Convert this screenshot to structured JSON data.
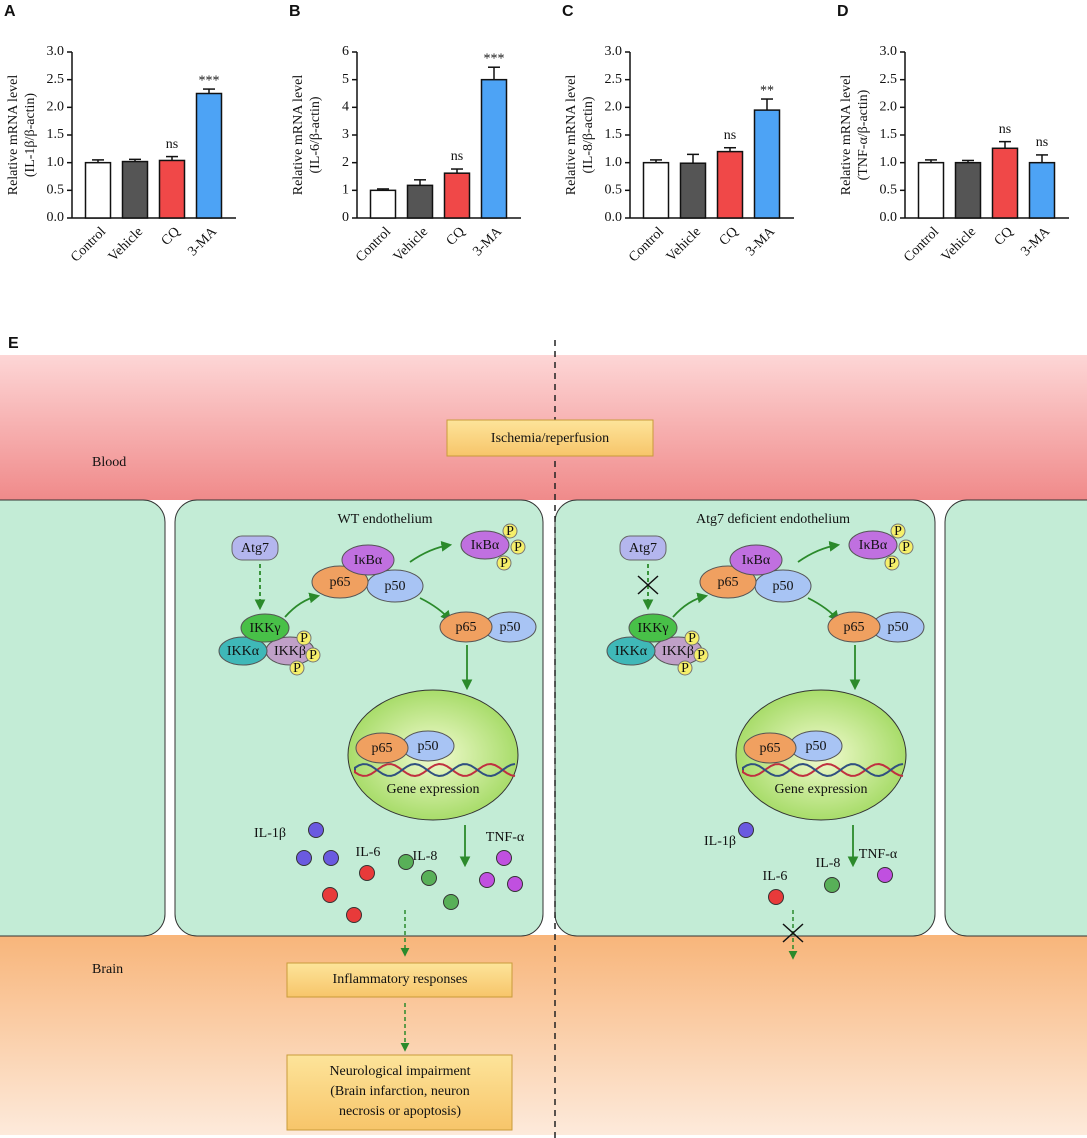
{
  "chart_data": [
    {
      "type": "bar",
      "panel_label": "A",
      "ylabel": [
        "Relative mRNA level",
        "(IL-1β/β-actin)"
      ],
      "categories": [
        "Control",
        "Vehicle",
        "CQ",
        "3-MA"
      ],
      "values": [
        1.0,
        1.02,
        1.04,
        2.25
      ],
      "errors": [
        0.05,
        0.04,
        0.07,
        0.08
      ],
      "annotations": [
        null,
        null,
        "ns",
        "***"
      ],
      "colors": [
        "#ffffff",
        "#555555",
        "#f04848",
        "#4da3f5"
      ],
      "ylim": [
        0,
        3
      ],
      "yticks": [
        {
          "value": 0,
          "label": "0.0"
        },
        {
          "value": 0.5,
          "label": "0.5"
        },
        {
          "value": 1,
          "label": "1.0"
        },
        {
          "value": 1.5,
          "label": "1.5"
        },
        {
          "value": 2,
          "label": "2.0"
        },
        {
          "value": 2.5,
          "label": "2.5"
        },
        {
          "value": 3,
          "label": "3.0"
        }
      ]
    },
    {
      "type": "bar",
      "panel_label": "B",
      "ylabel": [
        "Relative mRNA level",
        "(IL-6/β-actin)"
      ],
      "categories": [
        "Control",
        "Vehicle",
        "CQ",
        "3-MA"
      ],
      "values": [
        1.0,
        1.18,
        1.62,
        5.0
      ],
      "errors": [
        0.05,
        0.2,
        0.15,
        0.45
      ],
      "annotations": [
        null,
        null,
        "ns",
        "***"
      ],
      "colors": [
        "#ffffff",
        "#555555",
        "#f04848",
        "#4da3f5"
      ],
      "ylim": [
        0,
        6
      ],
      "yticks": [
        0,
        1,
        2,
        3,
        4,
        5,
        6
      ]
    },
    {
      "type": "bar",
      "panel_label": "C",
      "ylabel": [
        "Relative mRNA level",
        "(IL-8/β-actin)"
      ],
      "categories": [
        "Control",
        "Vehicle",
        "CQ",
        "3-MA"
      ],
      "values": [
        1.0,
        0.99,
        1.2,
        1.95
      ],
      "errors": [
        0.05,
        0.16,
        0.07,
        0.2
      ],
      "annotations": [
        null,
        null,
        "ns",
        "**"
      ],
      "colors": [
        "#ffffff",
        "#555555",
        "#f04848",
        "#4da3f5"
      ],
      "ylim": [
        0,
        3
      ],
      "yticks": [
        {
          "value": 0,
          "label": "0.0"
        },
        {
          "value": 0.5,
          "label": "0.5"
        },
        {
          "value": 1,
          "label": "1.0"
        },
        {
          "value": 1.5,
          "label": "1.5"
        },
        {
          "value": 2,
          "label": "2.0"
        },
        {
          "value": 2.5,
          "label": "2.5"
        },
        {
          "value": 3,
          "label": "3.0"
        }
      ]
    },
    {
      "type": "bar",
      "panel_label": "D",
      "ylabel": [
        "Relative mRNA level",
        "(TNF-α/β-actin)"
      ],
      "categories": [
        "Control",
        "Vehicle",
        "CQ",
        "3-MA"
      ],
      "values": [
        1.0,
        1.0,
        1.26,
        1.0
      ],
      "errors": [
        0.05,
        0.04,
        0.12,
        0.14
      ],
      "annotations": [
        null,
        null,
        "ns",
        "ns"
      ],
      "colors": [
        "#ffffff",
        "#555555",
        "#f04848",
        "#4da3f5"
      ],
      "ylim": [
        0,
        3
      ],
      "yticks": [
        {
          "value": 0,
          "label": "0.0"
        },
        {
          "value": 0.5,
          "label": "0.5"
        },
        {
          "value": 1,
          "label": "1.0"
        },
        {
          "value": 1.5,
          "label": "1.5"
        },
        {
          "value": 2,
          "label": "2.0"
        },
        {
          "value": 2.5,
          "label": "2.5"
        },
        {
          "value": 3,
          "label": "3.0"
        }
      ]
    }
  ],
  "diagram": {
    "panel_label": "E",
    "stimulus": "Ischemia/reperfusion",
    "regions": {
      "blood": "Blood",
      "brain": "Brain"
    },
    "left": {
      "title": "WT endothelium"
    },
    "right": {
      "title": "Atg7 deficient endothelium"
    },
    "molecules": {
      "atg7": "Atg7",
      "ikba": "IκBα",
      "p65": "p65",
      "p50": "p50",
      "ikkg": "IKKγ",
      "ikka": "IKKα",
      "ikkb": "IKKβ",
      "phospho": "P"
    },
    "gene_expression": "Gene expression",
    "cytokines": {
      "il1b": "IL-1β",
      "il6": "IL-6",
      "il8": "IL-8",
      "tnfa": "TNF-α"
    },
    "outcomes": {
      "inflammation": "Inflammatory responses",
      "impairment": [
        "Neurological impairment",
        "(Brain infarction, neuron",
        "necrosis or apoptosis)"
      ]
    }
  }
}
